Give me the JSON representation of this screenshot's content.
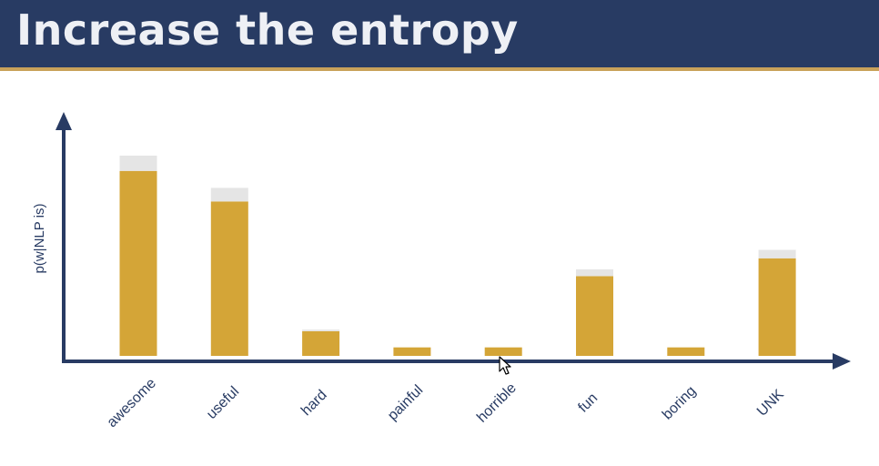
{
  "slide": {
    "title": "Increase the entropy"
  },
  "chart_data": {
    "type": "bar",
    "title": "",
    "xlabel": "",
    "ylabel": "p(w|NLP is)",
    "categories": [
      "awesome",
      "useful",
      "hard",
      "painful",
      "horrible",
      "fun",
      "boring",
      "UNK"
    ],
    "series": [
      {
        "values": [
          0.218,
          0.182,
          0.029,
          0.01,
          0.01,
          0.094,
          0.01,
          0.115
        ]
      },
      {
        "values": [
          0.018,
          0.016,
          0.002,
          0.0,
          0.0,
          0.008,
          0.0,
          0.01
        ]
      }
    ],
    "stacked": true,
    "ylim": [
      0,
      0.28
    ],
    "grid": false,
    "colors": {
      "bar": "#d4a537",
      "stack": "#e5e5e5",
      "axis": "#283b63",
      "label": "#283b63"
    }
  }
}
